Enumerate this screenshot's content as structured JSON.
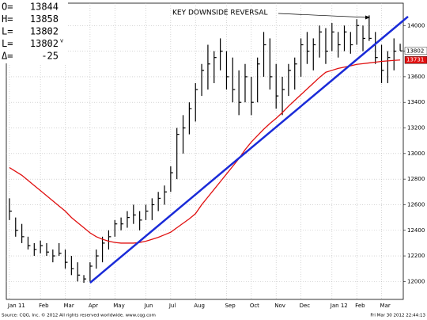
{
  "chart_data": {
    "type": "ohlc",
    "header": [
      {
        "label": "O=",
        "value": 13844
      },
      {
        "label": "H=",
        "value": 13858
      },
      {
        "label": "L=",
        "value": 13802
      },
      {
        "label": "L=",
        "value": 13802,
        "mark": "v"
      },
      {
        "label": "Δ=",
        "value": -25
      }
    ],
    "annotation": "KEY DOWNSIDE REVERSAL",
    "source": "Source: CQG, Inc. © 2012 All rights reserved worldwide. www.cqg.com",
    "timestamp": "Fri Mar 30 2012 22:44:13",
    "categories": [
      "Jan 11",
      null,
      null,
      null,
      null,
      "Feb",
      null,
      null,
      null,
      "Mar",
      null,
      null,
      null,
      "Apr",
      null,
      null,
      null,
      "May",
      null,
      null,
      null,
      null,
      "Jun",
      null,
      null,
      null,
      "Jul",
      null,
      null,
      null,
      "Aug",
      null,
      null,
      null,
      null,
      "Sep",
      null,
      null,
      null,
      "Oct",
      null,
      null,
      null,
      "Nov",
      null,
      null,
      null,
      "Dec",
      null,
      null,
      null,
      null,
      "Jan 12",
      null,
      null,
      null,
      "Feb",
      null,
      null,
      null,
      "Mar",
      null,
      null,
      null
    ],
    "high": [
      12650,
      12500,
      12450,
      12350,
      12300,
      12320,
      12300,
      12250,
      12300,
      12250,
      12200,
      12150,
      12050,
      12150,
      12250,
      12350,
      12400,
      12480,
      12500,
      12550,
      12600,
      12550,
      12600,
      12650,
      12700,
      12750,
      12900,
      13200,
      13300,
      13400,
      13550,
      13700,
      13850,
      13800,
      13900,
      13800,
      13750,
      13650,
      13700,
      13600,
      13750,
      13950,
      13900,
      13700,
      13600,
      13700,
      13750,
      13900,
      13950,
      13900,
      14000,
      13980,
      14020,
      13950,
      14000,
      13950,
      14050,
      14000,
      14080,
      13950,
      13850,
      13800,
      13900,
      13858
    ],
    "low": [
      12480,
      12350,
      12300,
      12250,
      12200,
      12220,
      12200,
      12150,
      12200,
      12100,
      12050,
      12000,
      11990,
      12000,
      12100,
      12150,
      12250,
      12350,
      12400,
      12420,
      12450,
      12400,
      12480,
      12480,
      12550,
      12600,
      12700,
      12800,
      13000,
      13150,
      13250,
      13450,
      13500,
      13550,
      13650,
      13500,
      13400,
      13300,
      13400,
      13300,
      13400,
      13600,
      13500,
      13350,
      13300,
      13450,
      13500,
      13600,
      13700,
      13650,
      13750,
      13700,
      13800,
      13750,
      13800,
      13780,
      13850,
      13800,
      13880,
      13700,
      13550,
      13550,
      13650,
      13802
    ],
    "close": [
      12550,
      12400,
      12350,
      12280,
      12250,
      12280,
      12230,
      12200,
      12220,
      12150,
      12100,
      12050,
      12020,
      12120,
      12200,
      12300,
      12350,
      12450,
      12450,
      12500,
      12520,
      12480,
      12550,
      12600,
      12650,
      12700,
      12850,
      13150,
      13200,
      13350,
      13500,
      13650,
      13700,
      13750,
      13800,
      13600,
      13500,
      13400,
      13600,
      13400,
      13700,
      13850,
      13600,
      13450,
      13500,
      13650,
      13700,
      13850,
      13800,
      13850,
      13950,
      13800,
      13950,
      13850,
      13950,
      13850,
      14000,
      13900,
      13900,
      13750,
      13650,
      13750,
      13800,
      13802
    ],
    "bar_color": "#000000",
    "moving_average": {
      "color": "#e01010",
      "values": [
        12890,
        12860,
        12830,
        12790,
        12750,
        12710,
        12670,
        12630,
        12590,
        12550,
        12500,
        12460,
        12420,
        12380,
        12350,
        12330,
        12315,
        12305,
        12300,
        12300,
        12300,
        12305,
        12315,
        12330,
        12345,
        12365,
        12385,
        12420,
        12455,
        12490,
        12530,
        12600,
        12660,
        12720,
        12780,
        12840,
        12900,
        12960,
        13030,
        13090,
        13140,
        13190,
        13235,
        13275,
        13320,
        13370,
        13415,
        13460,
        13505,
        13550,
        13595,
        13635,
        13650,
        13665,
        13675,
        13685,
        13697,
        13702,
        13708,
        13714,
        13720,
        13724,
        13728,
        13731
      ]
    },
    "trendline": {
      "color": "#1a2bd8",
      "x": [
        13,
        64.3
      ],
      "values": [
        11990,
        14070
      ]
    },
    "last_value": 13802,
    "ma_last": 13731,
    "ylim": [
      11860,
      14175
    ],
    "yticks": [
      12000,
      12200,
      12400,
      12600,
      12800,
      13000,
      13200,
      13400,
      13600,
      13800,
      14000
    ],
    "grid": true
  }
}
